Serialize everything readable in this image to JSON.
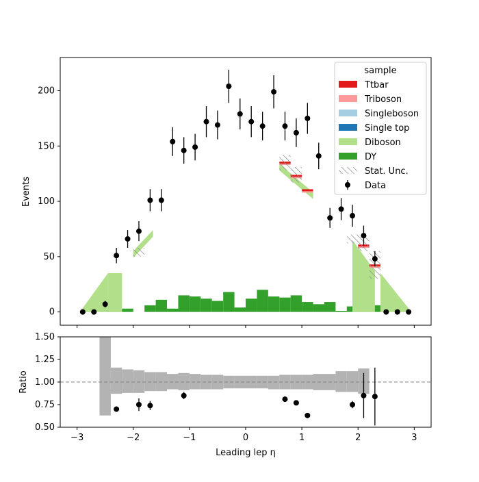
{
  "chart_data": [
    {
      "type": "bar",
      "panel": "main",
      "stacked": true,
      "xlabel": "Leading lep η",
      "ylabel": "Events",
      "xlim": [
        -3.3,
        3.3
      ],
      "ylim": [
        -12,
        230
      ],
      "xticks": [
        -3,
        -2,
        -1,
        0,
        1,
        2,
        3
      ],
      "yticks": [
        0,
        50,
        100,
        150,
        200
      ],
      "bin_edges": [
        -3.0,
        -2.8,
        -2.6,
        -2.4,
        -2.2,
        -2.0,
        -1.8,
        -1.6,
        -1.4,
        -1.2,
        -1.0,
        -0.8,
        -0.6,
        -0.4,
        -0.2,
        0.0,
        0.2,
        0.4,
        0.6,
        0.8,
        1.0,
        1.2,
        1.4,
        1.6,
        1.8,
        2.0,
        2.2,
        2.4,
        2.6,
        2.8,
        3.0
      ],
      "dy_values": [
        0,
        0,
        2,
        2,
        3,
        0,
        6,
        11,
        3,
        15,
        14,
        12,
        10,
        18,
        4,
        12,
        20,
        14,
        13,
        15,
        9,
        7,
        9,
        1,
        5,
        15,
        6,
        0,
        0,
        0
      ],
      "diboson_steps": [
        {
          "x0": -2.95,
          "x1": -2.45,
          "y0": 0,
          "y1": 35
        },
        {
          "x0": -2.45,
          "x1": -2.2,
          "y0": 35,
          "y1": 35
        },
        {
          "x0": -2.0,
          "x1": -1.65,
          "y0": 55,
          "y1": 74
        },
        {
          "x0": 0.6,
          "x1": 1.2,
          "y0": 134,
          "y1": 108
        },
        {
          "x0": 1.9,
          "x1": 2.3,
          "y0": 65,
          "y1": 37
        },
        {
          "x0": 2.4,
          "x1": 2.95,
          "y0": 35,
          "y1": 0
        }
      ],
      "ttbar_steps": [
        {
          "x0": 0.6,
          "x1": 0.8,
          "y": 135
        },
        {
          "x0": 0.8,
          "x1": 1.0,
          "y": 123
        },
        {
          "x0": 1.0,
          "x1": 1.2,
          "y": 110
        },
        {
          "x0": 2.0,
          "x1": 2.2,
          "y": 60
        },
        {
          "x0": 2.2,
          "x1": 2.4,
          "y": 42
        }
      ],
      "unc_boxes": [
        {
          "x0": -2.0,
          "x1": -1.8,
          "y0": 50,
          "y1": 58
        },
        {
          "x0": 0.6,
          "x1": 0.8,
          "y0": 128,
          "y1": 142
        },
        {
          "x0": 0.8,
          "x1": 1.0,
          "y0": 117,
          "y1": 131
        },
        {
          "x0": 1.8,
          "x1": 2.0,
          "y0": 62,
          "y1": 70
        },
        {
          "x0": 2.0,
          "x1": 2.2,
          "y0": 55,
          "y1": 69
        },
        {
          "x0": 2.2,
          "x1": 2.4,
          "y0": 30,
          "y1": 55
        }
      ],
      "data_points": [
        {
          "x": -2.9,
          "y": 0,
          "err": 0
        },
        {
          "x": -2.7,
          "y": 0,
          "err": 0
        },
        {
          "x": -2.5,
          "y": 7,
          "err": 3
        },
        {
          "x": -2.3,
          "y": 51,
          "err": 7
        },
        {
          "x": -2.1,
          "y": 66,
          "err": 8
        },
        {
          "x": -1.9,
          "y": 73,
          "err": 9
        },
        {
          "x": -1.7,
          "y": 101,
          "err": 10
        },
        {
          "x": -1.5,
          "y": 101,
          "err": 10
        },
        {
          "x": -1.3,
          "y": 154,
          "err": 13
        },
        {
          "x": -1.1,
          "y": 146,
          "err": 12
        },
        {
          "x": -0.9,
          "y": 149,
          "err": 12
        },
        {
          "x": -0.7,
          "y": 172,
          "err": 14
        },
        {
          "x": -0.5,
          "y": 169,
          "err": 13
        },
        {
          "x": -0.3,
          "y": 204,
          "err": 15
        },
        {
          "x": -0.1,
          "y": 179,
          "err": 14
        },
        {
          "x": 0.1,
          "y": 172,
          "err": 14
        },
        {
          "x": 0.3,
          "y": 168,
          "err": 13
        },
        {
          "x": 0.5,
          "y": 199,
          "err": 15
        },
        {
          "x": 0.7,
          "y": 168,
          "err": 13
        },
        {
          "x": 0.9,
          "y": 162,
          "err": 13
        },
        {
          "x": 1.1,
          "y": 175,
          "err": 14
        },
        {
          "x": 1.3,
          "y": 141,
          "err": 12
        },
        {
          "x": 1.5,
          "y": 85,
          "err": 9
        },
        {
          "x": 1.7,
          "y": 93,
          "err": 10
        },
        {
          "x": 1.9,
          "y": 87,
          "err": 10
        },
        {
          "x": 2.1,
          "y": 69,
          "err": 9
        },
        {
          "x": 2.3,
          "y": 48,
          "err": 7
        },
        {
          "x": 2.5,
          "y": 0,
          "err": 0
        },
        {
          "x": 2.7,
          "y": 0,
          "err": 0
        },
        {
          "x": 2.9,
          "y": 0,
          "err": 0
        }
      ],
      "legend": {
        "title": "sample",
        "position": "top-right",
        "entries": [
          {
            "label": "Ttbar",
            "color": "#e31a1c",
            "kind": "patch"
          },
          {
            "label": "Triboson",
            "color": "#fb9a99",
            "kind": "patch"
          },
          {
            "label": "Singleboson",
            "color": "#a6cee3",
            "kind": "patch"
          },
          {
            "label": "Single top",
            "color": "#1f78b4",
            "kind": "patch"
          },
          {
            "label": "Diboson",
            "color": "#b2df8a",
            "kind": "patch"
          },
          {
            "label": "DY",
            "color": "#33a02c",
            "kind": "patch"
          },
          {
            "label": "Stat. Unc.",
            "color": "#888888",
            "kind": "hatch"
          },
          {
            "label": "Data",
            "color": "#000000",
            "kind": "marker"
          }
        ]
      }
    },
    {
      "type": "scatter",
      "panel": "ratio",
      "xlabel": "Leading lep η",
      "ylabel": "Ratio",
      "ylim": [
        0.5,
        1.5
      ],
      "yticks": [
        "0.50",
        "0.75",
        "1.00",
        "1.25",
        "1.50"
      ],
      "reference_line": 1.0,
      "unc_band": [
        {
          "x0": -2.6,
          "x1": -2.4,
          "lo": 0.63,
          "hi": 1.5
        },
        {
          "x0": -2.4,
          "x1": -2.2,
          "lo": 0.87,
          "hi": 1.16
        },
        {
          "x0": -2.2,
          "x1": -2.0,
          "lo": 0.88,
          "hi": 1.14
        },
        {
          "x0": -2.0,
          "x1": -1.8,
          "lo": 0.88,
          "hi": 1.13
        },
        {
          "x0": -1.8,
          "x1": -1.6,
          "lo": 0.9,
          "hi": 1.11
        },
        {
          "x0": -1.6,
          "x1": -1.4,
          "lo": 0.9,
          "hi": 1.11
        },
        {
          "x0": -1.4,
          "x1": -1.2,
          "lo": 0.92,
          "hi": 1.09
        },
        {
          "x0": -1.2,
          "x1": -1.0,
          "lo": 0.91,
          "hi": 1.1
        },
        {
          "x0": -1.0,
          "x1": -0.8,
          "lo": 0.92,
          "hi": 1.09
        },
        {
          "x0": -0.8,
          "x1": -0.6,
          "lo": 0.92,
          "hi": 1.08
        },
        {
          "x0": -0.6,
          "x1": -0.4,
          "lo": 0.92,
          "hi": 1.08
        },
        {
          "x0": -0.4,
          "x1": -0.2,
          "lo": 0.93,
          "hi": 1.07
        },
        {
          "x0": -0.2,
          "x1": 0.0,
          "lo": 0.93,
          "hi": 1.07
        },
        {
          "x0": 0.0,
          "x1": 0.2,
          "lo": 0.93,
          "hi": 1.07
        },
        {
          "x0": 0.2,
          "x1": 0.4,
          "lo": 0.93,
          "hi": 1.07
        },
        {
          "x0": 0.4,
          "x1": 0.6,
          "lo": 0.92,
          "hi": 1.07
        },
        {
          "x0": 0.6,
          "x1": 0.8,
          "lo": 0.92,
          "hi": 1.08
        },
        {
          "x0": 0.8,
          "x1": 1.0,
          "lo": 0.92,
          "hi": 1.08
        },
        {
          "x0": 1.0,
          "x1": 1.2,
          "lo": 0.92,
          "hi": 1.08
        },
        {
          "x0": 1.2,
          "x1": 1.4,
          "lo": 0.91,
          "hi": 1.09
        },
        {
          "x0": 1.4,
          "x1": 1.6,
          "lo": 0.91,
          "hi": 1.09
        },
        {
          "x0": 1.6,
          "x1": 1.8,
          "lo": 0.89,
          "hi": 1.12
        },
        {
          "x0": 1.8,
          "x1": 2.0,
          "lo": 0.89,
          "hi": 1.12
        },
        {
          "x0": 2.0,
          "x1": 2.2,
          "lo": 0.87,
          "hi": 1.15
        }
      ],
      "points": [
        {
          "x": -2.3,
          "y": 0.7,
          "err": 0.03
        },
        {
          "x": -1.9,
          "y": 0.75,
          "err": 0.07
        },
        {
          "x": -1.7,
          "y": 0.74,
          "err": 0.05
        },
        {
          "x": -1.1,
          "y": 0.85,
          "err": 0.04
        },
        {
          "x": 0.7,
          "y": 0.81,
          "err": 0.03
        },
        {
          "x": 0.9,
          "y": 0.77,
          "err": 0.02
        },
        {
          "x": 1.1,
          "y": 0.63,
          "err": 0.01
        },
        {
          "x": 1.9,
          "y": 0.75,
          "err": 0.04
        },
        {
          "x": 2.1,
          "y": 0.85,
          "err": 0.25
        },
        {
          "x": 2.3,
          "y": 0.84,
          "err": 0.32
        }
      ]
    }
  ]
}
